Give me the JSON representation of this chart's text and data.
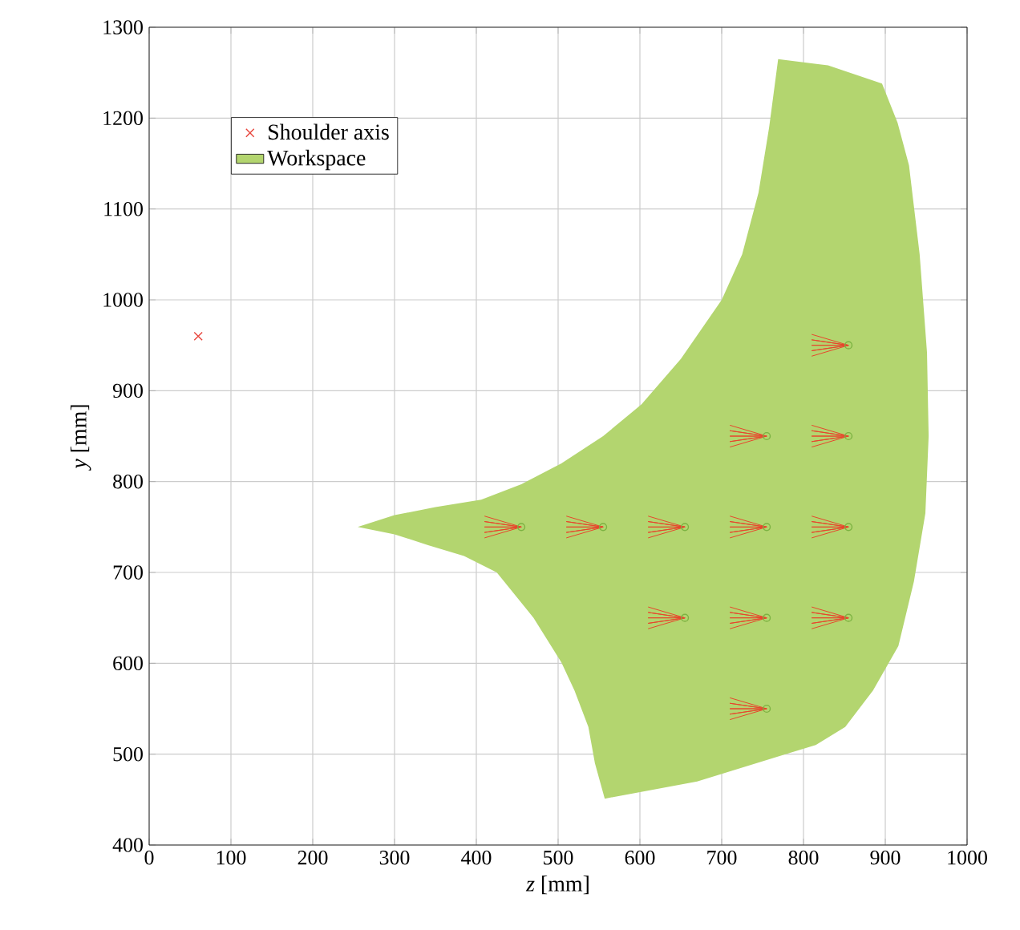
{
  "chart_data": {
    "type": "scatter",
    "xlabel": "*z* [mm]",
    "ylabel": "*y* [mm]",
    "xlim": [
      0,
      1000
    ],
    "ylim": [
      400,
      1300
    ],
    "xticks": [
      0,
      100,
      200,
      300,
      400,
      500,
      600,
      700,
      800,
      900,
      1000
    ],
    "yticks": [
      400,
      500,
      600,
      700,
      800,
      900,
      1000,
      1100,
      1200,
      1300
    ],
    "grid": true,
    "legend": "top left",
    "series": [
      {
        "name": "Shoulder axis",
        "color": "#e8453c",
        "marker": "cross",
        "x": [
          60
        ],
        "values": [
          960
        ]
      },
      {
        "type": "area",
        "name": "Workspace",
        "color": "#b3d56f",
        "x": [
          255,
          300,
          350,
          406,
          455,
          504,
          555,
          602,
          650,
          700,
          725,
          745,
          758,
          769,
          830,
          896,
          915,
          929,
          942,
          951,
          953,
          949,
          935,
          916,
          885,
          851,
          815,
          778,
          670,
          557,
          545,
          537,
          520,
          504,
          470,
          425,
          385,
          341,
          300,
          255
        ],
        "values": [
          750,
          763,
          772,
          780,
          797,
          820,
          850,
          885,
          935,
          1000,
          1050,
          1118,
          1190,
          1265,
          1258,
          1238,
          1195,
          1148,
          1050,
          942,
          850,
          765,
          690,
          619,
          570,
          530,
          510,
          500,
          470,
          451,
          490,
          530,
          570,
          601,
          650,
          700,
          718,
          730,
          742,
          750
        ]
      },
      {
        "type": "line",
        "color": "#e8452c",
        "x": [
          410,
          455,
          410,
          455,
          410,
          455,
          410,
          455,
          410
        ],
        "values": [
          762,
          750,
          756,
          750,
          750,
          750,
          744,
          750,
          738
        ]
      },
      {
        "type": "line",
        "color": "#e8452c",
        "x": [
          510,
          555,
          510,
          555,
          510,
          555,
          510,
          555,
          510
        ],
        "values": [
          762,
          750,
          756,
          750,
          750,
          750,
          744,
          750,
          738
        ]
      },
      {
        "type": "line",
        "color": "#e8452c",
        "x": [
          610,
          655,
          610,
          655,
          610,
          655,
          610,
          655,
          610
        ],
        "values": [
          762,
          750,
          756,
          750,
          750,
          750,
          744,
          750,
          738
        ]
      },
      {
        "type": "line",
        "color": "#e8452c",
        "x": [
          710,
          755,
          710,
          755,
          710,
          755,
          710,
          755,
          710
        ],
        "values": [
          762,
          750,
          756,
          750,
          750,
          750,
          744,
          750,
          738
        ]
      },
      {
        "type": "line",
        "color": "#e8452c",
        "x": [
          810,
          855,
          810,
          855,
          810,
          855,
          810,
          855,
          810
        ],
        "values": [
          762,
          750,
          756,
          750,
          750,
          750,
          744,
          750,
          738
        ]
      },
      {
        "type": "line",
        "color": "#e8452c",
        "x": [
          610,
          655,
          610,
          655,
          610,
          655,
          610,
          655,
          610
        ],
        "values": [
          662,
          650,
          656,
          650,
          650,
          650,
          644,
          650,
          638
        ]
      },
      {
        "type": "line",
        "color": "#e8452c",
        "x": [
          710,
          755,
          710,
          755,
          710,
          755,
          710,
          755,
          710
        ],
        "values": [
          662,
          650,
          656,
          650,
          650,
          650,
          644,
          650,
          638
        ]
      },
      {
        "type": "line",
        "color": "#e8452c",
        "x": [
          810,
          855,
          810,
          855,
          810,
          855,
          810,
          855,
          810
        ],
        "values": [
          662,
          650,
          656,
          650,
          650,
          650,
          644,
          650,
          638
        ]
      },
      {
        "type": "line",
        "color": "#e8452c",
        "x": [
          710,
          755,
          710,
          755,
          710,
          755,
          710,
          755,
          710
        ],
        "values": [
          862,
          850,
          856,
          850,
          850,
          850,
          844,
          850,
          838
        ]
      },
      {
        "type": "line",
        "color": "#e8452c",
        "x": [
          810,
          855,
          810,
          855,
          810,
          855,
          810,
          855,
          810
        ],
        "values": [
          862,
          850,
          856,
          850,
          850,
          850,
          844,
          850,
          838
        ]
      },
      {
        "type": "line",
        "color": "#e8452c",
        "x": [
          810,
          855,
          810,
          855,
          810,
          855,
          810,
          855,
          810
        ],
        "values": [
          962,
          950,
          956,
          950,
          950,
          950,
          944,
          950,
          938
        ]
      },
      {
        "type": "line",
        "color": "#e8452c",
        "x": [
          710,
          755,
          710,
          755,
          710,
          755,
          710,
          755,
          710
        ],
        "values": [
          562,
          550,
          556,
          550,
          550,
          550,
          544,
          550,
          538
        ]
      },
      {
        "color": "#7cb342",
        "marker": "circle",
        "x": [
          455,
          555,
          655,
          755,
          855,
          655,
          755,
          855,
          755,
          855,
          855,
          755
        ],
        "values": [
          750,
          750,
          750,
          750,
          750,
          650,
          650,
          650,
          850,
          850,
          950,
          550
        ]
      }
    ]
  }
}
